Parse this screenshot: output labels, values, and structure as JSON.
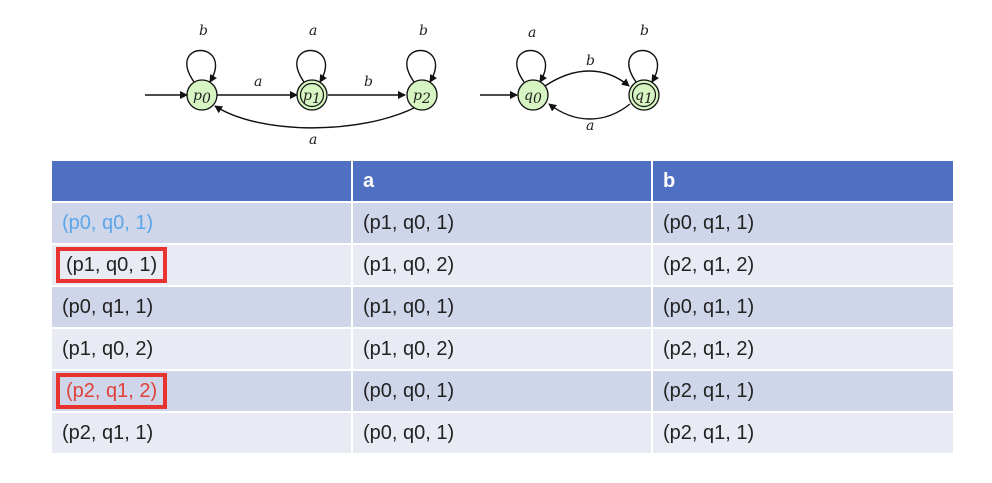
{
  "diagram": {
    "dfa_p": {
      "states": [
        {
          "name": "p",
          "sub": "0",
          "start": true,
          "accepting": false
        },
        {
          "name": "p",
          "sub": "1",
          "start": false,
          "accepting": true
        },
        {
          "name": "p",
          "sub": "2",
          "start": false,
          "accepting": false
        }
      ],
      "transitions": [
        {
          "from": "p0",
          "to": "p0",
          "label": "b"
        },
        {
          "from": "p0",
          "to": "p1",
          "label": "a"
        },
        {
          "from": "p1",
          "to": "p1",
          "label": "a"
        },
        {
          "from": "p1",
          "to": "p2",
          "label": "b"
        },
        {
          "from": "p2",
          "to": "p2",
          "label": "b"
        },
        {
          "from": "p2",
          "to": "p0",
          "label": "a"
        }
      ]
    },
    "dfa_q": {
      "states": [
        {
          "name": "q",
          "sub": "0",
          "start": true,
          "accepting": false
        },
        {
          "name": "q",
          "sub": "1",
          "start": false,
          "accepting": true
        }
      ],
      "transitions": [
        {
          "from": "q0",
          "to": "q0",
          "label": "a"
        },
        {
          "from": "q0",
          "to": "q1",
          "label": "b"
        },
        {
          "from": "q1",
          "to": "q1",
          "label": "b"
        },
        {
          "from": "q1",
          "to": "q0",
          "label": "a"
        }
      ]
    },
    "state_fill": "#d7f5c2"
  },
  "table": {
    "headers": [
      "",
      "a",
      "b"
    ],
    "header_color": "#4f6fc2",
    "rows": [
      {
        "cells": [
          "(p0, q0, 1)",
          "(p1, q0, 1)",
          "(p0, q1, 1)"
        ],
        "first_style": "blue"
      },
      {
        "cells": [
          "(p1, q0, 1)",
          "(p1, q0, 2)",
          "(p2, q1, 2)"
        ],
        "first_style": "boxed"
      },
      {
        "cells": [
          "(p0, q1, 1)",
          "(p1, q0, 1)",
          "(p0, q1, 1)"
        ],
        "first_style": ""
      },
      {
        "cells": [
          "(p1, q0, 2)",
          "(p1, q0, 2)",
          "(p2, q1, 2)"
        ],
        "first_style": ""
      },
      {
        "cells": [
          "(p2, q1, 2)",
          "(p0, q0, 1)",
          "(p2, q1, 1)"
        ],
        "first_style": "red-boxed"
      },
      {
        "cells": [
          "(p2, q1, 1)",
          "(p0, q0, 1)",
          "(p2, q1, 1)"
        ],
        "first_style": ""
      }
    ]
  }
}
